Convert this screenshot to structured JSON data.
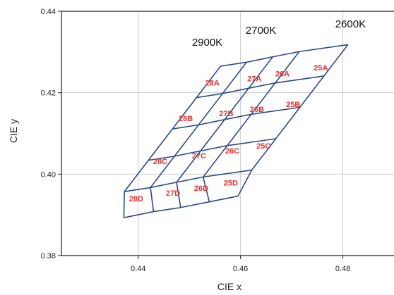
{
  "chart_data": {
    "type": "diagram",
    "xlabel": "CIE x",
    "ylabel": "CIE y",
    "xlim": [
      0.425,
      0.49
    ],
    "ylim": [
      0.38,
      0.44
    ],
    "xticks": [
      0.44,
      0.46,
      0.48
    ],
    "xtick_labels": [
      "0.44",
      "0.46",
      "0.48"
    ],
    "yticks": [
      0.38,
      0.4,
      0.42,
      0.44
    ],
    "ytick_labels": [
      "0.38",
      "0.40",
      "0.42",
      "0.44"
    ],
    "grid": true,
    "grid_color": "#cccccc",
    "line_color": "#2b4a8a",
    "label_color": "#e8302e",
    "grid_vertices": [
      [
        [
          0.4561,
          0.4265
        ],
        [
          0.4612,
          0.4275
        ],
        [
          0.4663,
          0.4288
        ],
        [
          0.4715,
          0.4301
        ],
        [
          0.481,
          0.4318
        ]
      ],
      [
        [
          0.4514,
          0.4188
        ],
        [
          0.4565,
          0.4198
        ],
        [
          0.4616,
          0.4211
        ],
        [
          0.4668,
          0.4224
        ],
        [
          0.4763,
          0.4241
        ]
      ],
      [
        [
          0.4467,
          0.4111
        ],
        [
          0.4518,
          0.4121
        ],
        [
          0.4569,
          0.4134
        ],
        [
          0.4621,
          0.4147
        ],
        [
          0.4716,
          0.4164
        ]
      ],
      [
        [
          0.442,
          0.4034
        ],
        [
          0.4471,
          0.4044
        ],
        [
          0.4522,
          0.4057
        ],
        [
          0.4574,
          0.407
        ],
        [
          0.4669,
          0.4087
        ]
      ],
      [
        [
          0.4373,
          0.3957
        ],
        [
          0.4424,
          0.3967
        ],
        [
          0.4475,
          0.398
        ],
        [
          0.4527,
          0.3993
        ],
        [
          0.4622,
          0.401
        ]
      ],
      [
        [
          0.4372,
          0.3893
        ],
        [
          0.443,
          0.3908
        ],
        [
          0.4483,
          0.3918
        ],
        [
          0.4539,
          0.3932
        ],
        [
          0.4595,
          0.3946
        ]
      ]
    ],
    "cct_labels": [
      {
        "text": "2900K",
        "x": 0.4535,
        "y": 0.4315
      },
      {
        "text": "2700K",
        "x": 0.464,
        "y": 0.4345
      },
      {
        "text": "2600K",
        "x": 0.4815,
        "y": 0.436
      }
    ],
    "bins": [
      {
        "text": "28A",
        "x": 0.4545,
        "y": 0.4218
      },
      {
        "text": "27A",
        "x": 0.4627,
        "y": 0.4228
      },
      {
        "text": "26A",
        "x": 0.4682,
        "y": 0.424
      },
      {
        "text": "25A",
        "x": 0.4757,
        "y": 0.4255
      },
      {
        "text": "28B",
        "x": 0.4493,
        "y": 0.413
      },
      {
        "text": "27B",
        "x": 0.4572,
        "y": 0.4142
      },
      {
        "text": "26B",
        "x": 0.4632,
        "y": 0.4153
      },
      {
        "text": "25B",
        "x": 0.4703,
        "y": 0.4165
      },
      {
        "text": "28C",
        "x": 0.4443,
        "y": 0.4025
      },
      {
        "text": "27C",
        "x": 0.4519,
        "y": 0.4039
      },
      {
        "text": "26C",
        "x": 0.4584,
        "y": 0.4051
      },
      {
        "text": "25C",
        "x": 0.4645,
        "y": 0.4063
      },
      {
        "text": "28D",
        "x": 0.4396,
        "y": 0.3933
      },
      {
        "text": "27D",
        "x": 0.4468,
        "y": 0.3947
      },
      {
        "text": "26D",
        "x": 0.4523,
        "y": 0.3959
      },
      {
        "text": "25D",
        "x": 0.4581,
        "y": 0.3972
      }
    ]
  }
}
